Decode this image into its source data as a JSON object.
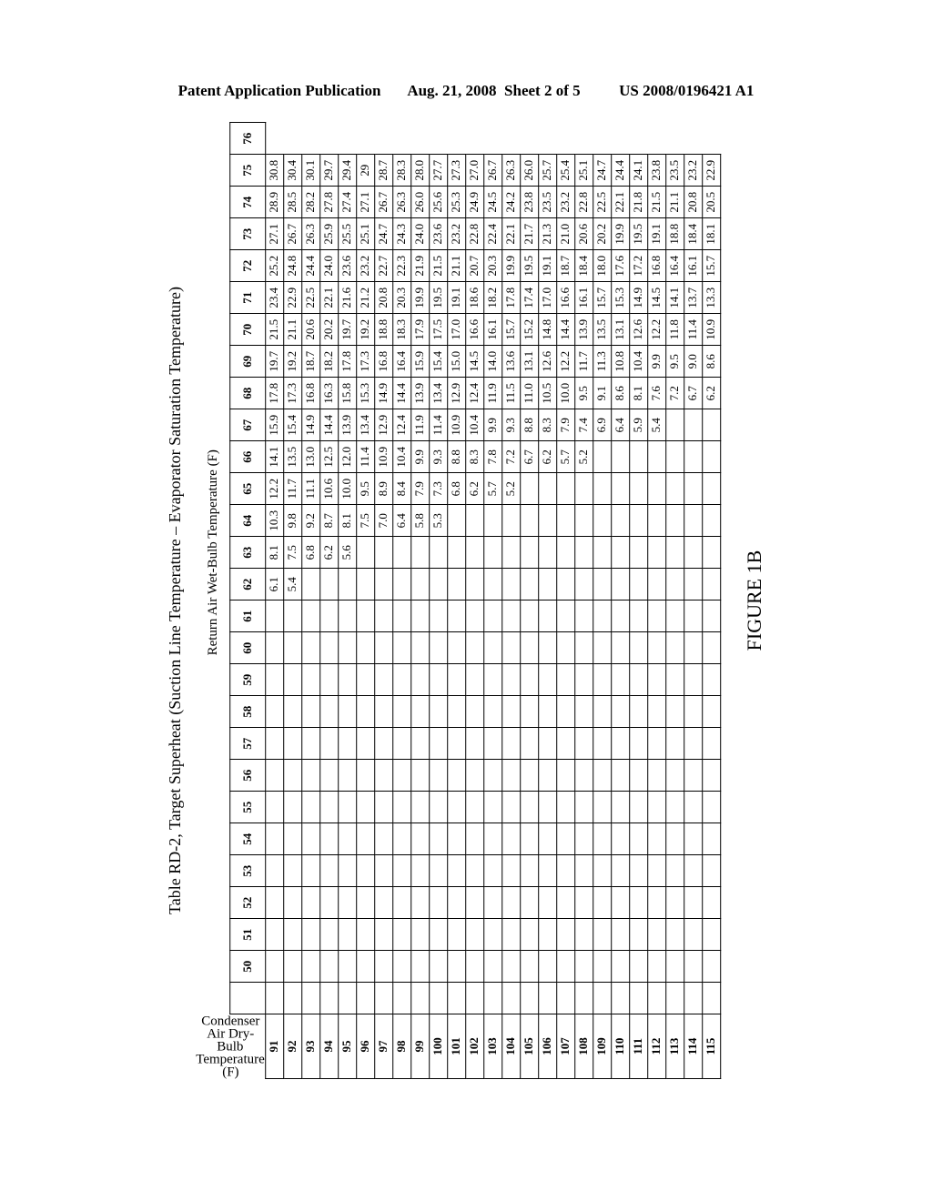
{
  "header": {
    "left": "Patent Application Publication",
    "mid": "Aug. 21, 2008  Sheet 2 of 5",
    "right": "US 2008/0196421 A1"
  },
  "table": {
    "title": "Table RD-2, Target Superheat (Suction Line Temperature – Evaporator Saturation Temperature)",
    "x_label": "Return Air Wet-Bulb Temperature (F)",
    "y_label": "Condenser Air Dry-Bulb Temperature (F)",
    "columns": [
      "50",
      "51",
      "52",
      "53",
      "54",
      "55",
      "56",
      "57",
      "58",
      "59",
      "60",
      "61",
      "62",
      "63",
      "64",
      "65",
      "66",
      "67",
      "68",
      "69",
      "70",
      "71",
      "72",
      "73",
      "74",
      "75",
      "76"
    ],
    "row_headers": [
      "91",
      "92",
      "93",
      "94",
      "95",
      "96",
      "97",
      "98",
      "99",
      "100",
      "101",
      "102",
      "103",
      "104",
      "105",
      "106",
      "107",
      "108",
      "109",
      "110",
      "111",
      "112",
      "113",
      "114",
      "115"
    ],
    "rows": [
      [
        "",
        "",
        "",
        "",
        "",
        "",
        "",
        "",
        "",
        "",
        "",
        "",
        "",
        "6.1",
        "8.1",
        "10.3",
        "12.2",
        "14.1",
        "15.9",
        "17.8",
        "19.7",
        "21.5",
        "23.4",
        "25.2",
        "27.1",
        "28.9",
        "30.8"
      ],
      [
        "",
        "",
        "",
        "",
        "",
        "",
        "",
        "",
        "",
        "",
        "",
        "",
        "",
        "5.4",
        "7.5",
        "9.8",
        "11.7",
        "13.5",
        "15.4",
        "17.3",
        "19.2",
        "21.1",
        "22.9",
        "24.8",
        "26.7",
        "28.5",
        "30.4"
      ],
      [
        "",
        "",
        "",
        "",
        "",
        "",
        "",
        "",
        "",
        "",
        "",
        "",
        "",
        "",
        "6.8",
        "9.2",
        "11.1",
        "13.0",
        "14.9",
        "16.8",
        "18.7",
        "20.6",
        "22.5",
        "24.4",
        "26.3",
        "28.2",
        "30.1"
      ],
      [
        "",
        "",
        "",
        "",
        "",
        "",
        "",
        "",
        "",
        "",
        "",
        "",
        "",
        "",
        "6.2",
        "8.7",
        "10.6",
        "12.5",
        "14.4",
        "16.3",
        "18.2",
        "20.2",
        "22.1",
        "24.0",
        "25.9",
        "27.8",
        "29.7"
      ],
      [
        "",
        "",
        "",
        "",
        "",
        "",
        "",
        "",
        "",
        "",
        "",
        "",
        "",
        "",
        "5.6",
        "8.1",
        "10.0",
        "12.0",
        "13.9",
        "15.8",
        "17.8",
        "19.7",
        "21.6",
        "23.6",
        "25.5",
        "27.4",
        "29.4"
      ],
      [
        "",
        "",
        "",
        "",
        "",
        "",
        "",
        "",
        "",
        "",
        "",
        "",
        "",
        "",
        "",
        "7.5",
        "9.5",
        "11.4",
        "13.4",
        "15.3",
        "17.3",
        "19.2",
        "21.2",
        "23.2",
        "25.1",
        "27.1",
        "29"
      ],
      [
        "",
        "",
        "",
        "",
        "",
        "",
        "",
        "",
        "",
        "",
        "",
        "",
        "",
        "",
        "",
        "7.0",
        "8.9",
        "10.9",
        "12.9",
        "14.9",
        "16.8",
        "18.8",
        "20.8",
        "22.7",
        "24.7",
        "26.7",
        "28.7"
      ],
      [
        "",
        "",
        "",
        "",
        "",
        "",
        "",
        "",
        "",
        "",
        "",
        "",
        "",
        "",
        "",
        "6.4",
        "8.4",
        "10.4",
        "12.4",
        "14.4",
        "16.4",
        "18.3",
        "20.3",
        "22.3",
        "24.3",
        "26.3",
        "28.3"
      ],
      [
        "",
        "",
        "",
        "",
        "",
        "",
        "",
        "",
        "",
        "",
        "",
        "",
        "",
        "",
        "",
        "5.8",
        "7.9",
        "9.9",
        "11.9",
        "13.9",
        "15.9",
        "17.9",
        "19.9",
        "21.9",
        "24.0",
        "26.0",
        "28.0"
      ],
      [
        "",
        "",
        "",
        "",
        "",
        "",
        "",
        "",
        "",
        "",
        "",
        "",
        "",
        "",
        "",
        "5.3",
        "7.3",
        "9.3",
        "11.4",
        "13.4",
        "15.4",
        "17.5",
        "19.5",
        "21.5",
        "23.6",
        "25.6",
        "27.7"
      ],
      [
        "",
        "",
        "",
        "",
        "",
        "",
        "",
        "",
        "",
        "",
        "",
        "",
        "",
        "",
        "",
        "",
        "6.8",
        "8.8",
        "10.9",
        "12.9",
        "15.0",
        "17.0",
        "19.1",
        "21.1",
        "23.2",
        "25.3",
        "27.3"
      ],
      [
        "",
        "",
        "",
        "",
        "",
        "",
        "",
        "",
        "",
        "",
        "",
        "",
        "",
        "",
        "",
        "",
        "6.2",
        "8.3",
        "10.4",
        "12.4",
        "14.5",
        "16.6",
        "18.6",
        "20.7",
        "22.8",
        "24.9",
        "27.0"
      ],
      [
        "",
        "",
        "",
        "",
        "",
        "",
        "",
        "",
        "",
        "",
        "",
        "",
        "",
        "",
        "",
        "",
        "5.7",
        "7.8",
        "9.9",
        "11.9",
        "14.0",
        "16.1",
        "18.2",
        "20.3",
        "22.4",
        "24.5",
        "26.7"
      ],
      [
        "",
        "",
        "",
        "",
        "",
        "",
        "",
        "",
        "",
        "",
        "",
        "",
        "",
        "",
        "",
        "",
        "5.2",
        "7.2",
        "9.3",
        "11.5",
        "13.6",
        "15.7",
        "17.8",
        "19.9",
        "22.1",
        "24.2",
        "26.3"
      ],
      [
        "",
        "",
        "",
        "",
        "",
        "",
        "",
        "",
        "",
        "",
        "",
        "",
        "",
        "",
        "",
        "",
        "",
        "6.7",
        "8.8",
        "11.0",
        "13.1",
        "15.2",
        "17.4",
        "19.5",
        "21.7",
        "23.8",
        "26.0"
      ],
      [
        "",
        "",
        "",
        "",
        "",
        "",
        "",
        "",
        "",
        "",
        "",
        "",
        "",
        "",
        "",
        "",
        "",
        "6.2",
        "8.3",
        "10.5",
        "12.6",
        "14.8",
        "17.0",
        "19.1",
        "21.3",
        "23.5",
        "25.7"
      ],
      [
        "",
        "",
        "",
        "",
        "",
        "",
        "",
        "",
        "",
        "",
        "",
        "",
        "",
        "",
        "",
        "",
        "",
        "5.7",
        "7.9",
        "10.0",
        "12.2",
        "14.4",
        "16.6",
        "18.7",
        "21.0",
        "23.2",
        "25.4"
      ],
      [
        "",
        "",
        "",
        "",
        "",
        "",
        "",
        "",
        "",
        "",
        "",
        "",
        "",
        "",
        "",
        "",
        "",
        "5.2",
        "7.4",
        "9.5",
        "11.7",
        "13.9",
        "16.1",
        "18.4",
        "20.6",
        "22.8",
        "25.1"
      ],
      [
        "",
        "",
        "",
        "",
        "",
        "",
        "",
        "",
        "",
        "",
        "",
        "",
        "",
        "",
        "",
        "",
        "",
        "",
        "6.9",
        "9.1",
        "11.3",
        "13.5",
        "15.7",
        "18.0",
        "20.2",
        "22.5",
        "24.7"
      ],
      [
        "",
        "",
        "",
        "",
        "",
        "",
        "",
        "",
        "",
        "",
        "",
        "",
        "",
        "",
        "",
        "",
        "",
        "",
        "6.4",
        "8.6",
        "10.8",
        "13.1",
        "15.3",
        "17.6",
        "19.9",
        "22.1",
        "24.4"
      ],
      [
        "",
        "",
        "",
        "",
        "",
        "",
        "",
        "",
        "",
        "",
        "",
        "",
        "",
        "",
        "",
        "",
        "",
        "",
        "5.9",
        "8.1",
        "10.4",
        "12.6",
        "14.9",
        "17.2",
        "19.5",
        "21.8",
        "24.1"
      ],
      [
        "",
        "",
        "",
        "",
        "",
        "",
        "",
        "",
        "",
        "",
        "",
        "",
        "",
        "",
        "",
        "",
        "",
        "",
        "5.4",
        "7.6",
        "9.9",
        "12.2",
        "14.5",
        "16.8",
        "19.1",
        "21.5",
        "23.8"
      ],
      [
        "",
        "",
        "",
        "",
        "",
        "",
        "",
        "",
        "",
        "",
        "",
        "",
        "",
        "",
        "",
        "",
        "",
        "",
        "",
        "7.2",
        "9.5",
        "11.8",
        "14.1",
        "16.4",
        "18.8",
        "21.1",
        "23.5"
      ],
      [
        "",
        "",
        "",
        "",
        "",
        "",
        "",
        "",
        "",
        "",
        "",
        "",
        "",
        "",
        "",
        "",
        "",
        "",
        "",
        "6.7",
        "9.0",
        "11.4",
        "13.7",
        "16.1",
        "18.4",
        "20.8",
        "23.2"
      ],
      [
        "",
        "",
        "",
        "",
        "",
        "",
        "",
        "",
        "",
        "",
        "",
        "",
        "",
        "",
        "",
        "",
        "",
        "",
        "",
        "6.2",
        "8.6",
        "10.9",
        "13.3",
        "15.7",
        "18.1",
        "20.5",
        "22.9"
      ]
    ]
  },
  "figure_caption": "FIGURE 1B"
}
